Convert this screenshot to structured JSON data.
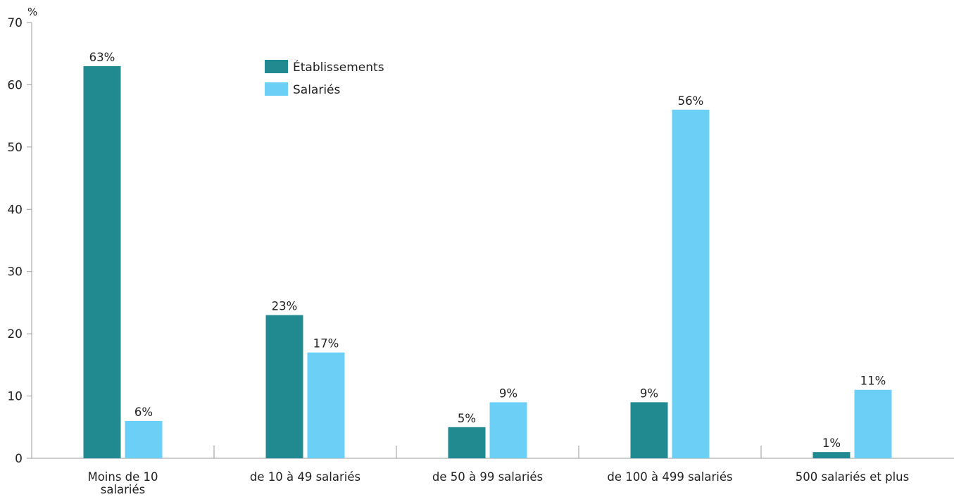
{
  "chart_data": {
    "type": "bar",
    "title": "",
    "xlabel": "",
    "ylabel": "%",
    "ylim": [
      0,
      70
    ],
    "yticks": [
      0,
      10,
      20,
      30,
      40,
      50,
      60,
      70
    ],
    "grid": false,
    "legend_position": "top-center",
    "categories": [
      [
        "Moins de 10",
        "salariés"
      ],
      [
        "de 10 à 49 salariés"
      ],
      [
        "de 50 à 99 salariés"
      ],
      [
        "de 100 à 499 salariés"
      ],
      [
        "500 salariés et plus"
      ]
    ],
    "series": [
      {
        "name": "Établissements",
        "color": "#218a91",
        "values": [
          63,
          23,
          5,
          9,
          1
        ],
        "labels": [
          "63%",
          "23%",
          "5%",
          "9%",
          "1%"
        ]
      },
      {
        "name": "Salariés",
        "color": "#6ccff6",
        "values": [
          6,
          17,
          9,
          56,
          11
        ],
        "labels": [
          "6%",
          "17%",
          "9%",
          "56%",
          "11%"
        ]
      }
    ]
  }
}
